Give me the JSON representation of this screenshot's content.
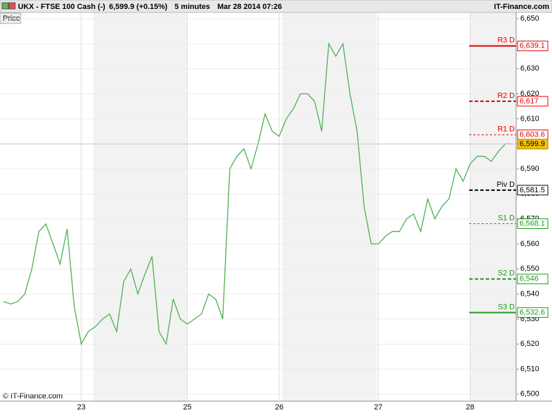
{
  "header": {
    "instrument": "UKX - FTSE 100 Cash (-)",
    "price": "6,599.9 (+0.15%)",
    "interval": "5 minutes",
    "timestamp": "Mar 28 2014 07:26",
    "brand": "IT-Finance.com",
    "tab": "Price",
    "copyright": "© IT-Finance.com"
  },
  "chart_data": {
    "type": "line",
    "color": "#4caf50",
    "categories": [
      null,
      null,
      null,
      null,
      null,
      null,
      null,
      null,
      null,
      null,
      null,
      "23",
      null,
      null,
      null,
      null,
      null,
      null,
      null,
      null,
      null,
      null,
      null,
      null,
      null,
      null,
      "25",
      null,
      null,
      null,
      null,
      null,
      null,
      null,
      null,
      null,
      null,
      null,
      null,
      "26",
      null,
      null,
      null,
      null,
      null,
      null,
      null,
      null,
      null,
      null,
      null,
      null,
      null,
      "27",
      null,
      null,
      null,
      null,
      null,
      null,
      null,
      null,
      null,
      null,
      null,
      null,
      "28",
      null,
      null,
      null,
      null,
      null,
      null
    ],
    "values": [
      6537,
      6536,
      6537,
      6540,
      6550,
      6565,
      6568,
      6560,
      6552,
      6566,
      6535,
      6520,
      6525,
      6527,
      6530,
      6532,
      6525,
      6545,
      6550,
      6540,
      6548,
      6555,
      6525,
      6520,
      6538,
      6530,
      6528,
      6530,
      6532,
      6540,
      6538,
      6530,
      6590,
      6595,
      6598,
      6590,
      6600,
      6612,
      6605,
      6603,
      6610,
      6614,
      6620,
      6620,
      6617,
      6605,
      6640,
      6635,
      6640,
      6620,
      6605,
      6575,
      6560,
      6560,
      6563,
      6565,
      6565,
      6570,
      6572,
      6565,
      6578,
      6570,
      6575,
      6578,
      6590,
      6585,
      6592,
      6595,
      6595,
      6593,
      6597,
      6600,
      6599.9
    ],
    "last": {
      "value": 6599.9,
      "label": "6,599.9",
      "color": "#f5c200"
    },
    "ylim": [
      6497.2,
      6652.5
    ],
    "yticks": [
      {
        "value": 6500,
        "label": "6,500"
      },
      {
        "value": 6510,
        "label": "6,510"
      },
      {
        "value": 6520,
        "label": "6,520"
      },
      {
        "value": 6530,
        "label": "6,530"
      },
      {
        "value": 6540,
        "label": "6,540"
      },
      {
        "value": 6550,
        "label": "6,550"
      },
      {
        "value": 6560,
        "label": "6,560"
      },
      {
        "value": 6570,
        "label": "6,570"
      },
      {
        "value": 6580,
        "label": "6,580"
      },
      {
        "value": 6590,
        "label": "6,590"
      },
      {
        "value": 6600,
        "label": "6,600"
      },
      {
        "value": 6610,
        "label": "6,610"
      },
      {
        "value": 6620,
        "label": "6,620"
      },
      {
        "value": 6630,
        "label": "6,630"
      },
      {
        "value": 6640,
        "label": "6,640"
      },
      {
        "value": 6650,
        "label": "6,650"
      }
    ],
    "grid": true,
    "pivots": {
      "names": [
        "R3 D",
        "R2 D",
        "R1 D",
        "Piv D",
        "S1 D",
        "S2 D",
        "S3 D"
      ],
      "values": [
        6639.1,
        6617,
        6603.6,
        6581.5,
        6568.1,
        6546,
        6532.6
      ],
      "value_labels": [
        "6,639.1",
        "6,617",
        "6,603.6",
        "6,581.5",
        "6,568.1",
        "6,546",
        "6,532.6"
      ],
      "colors": [
        "#e00000",
        "#e00000",
        "#e00000",
        "#000000",
        "#1a9a1a",
        "#1a9a1a",
        "#1a9a1a"
      ],
      "styles": [
        "solid",
        "dashed",
        "dotted",
        "dashed",
        "dotted",
        "dashed",
        "solid"
      ]
    }
  }
}
